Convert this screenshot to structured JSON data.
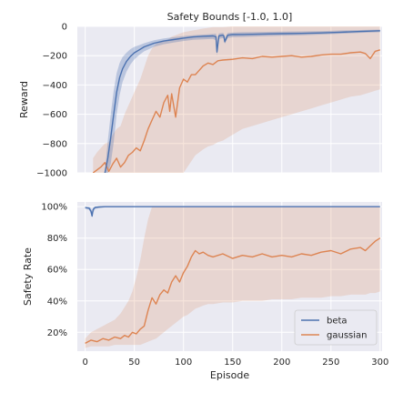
{
  "colors": {
    "panel_bg": "#eaeaf2",
    "grid": "#ffffff",
    "beta": "#4c72b0",
    "gaussian": "#dd8452"
  },
  "chart_data": [
    {
      "type": "line",
      "title": "Safety Bounds [-1.0, 1.0]",
      "xlabel": "",
      "ylabel": "Reward",
      "xlim": [
        -8,
        302
      ],
      "ylim": [
        -1000,
        0
      ],
      "xticks": [
        0,
        50,
        100,
        150,
        200,
        250,
        300
      ],
      "yticks": [
        0,
        -200,
        -400,
        -600,
        -800,
        -1000
      ],
      "ytick_labels": [
        "0",
        "−200",
        "−400",
        "−600",
        "−800",
        "−1000"
      ],
      "grid": true,
      "series": [
        {
          "name": "beta",
          "color": "#4c72b0",
          "x": [
            20,
            23,
            26,
            29,
            32,
            35,
            38,
            42,
            46,
            50,
            55,
            60,
            70,
            80,
            90,
            100,
            110,
            120,
            130,
            133,
            134,
            136,
            140,
            141,
            142,
            145,
            150,
            160,
            180,
            200,
            220,
            240,
            260,
            280,
            300
          ],
          "y": [
            -1000,
            -900,
            -760,
            -600,
            -450,
            -350,
            -290,
            -240,
            -205,
            -180,
            -160,
            -140,
            -115,
            -100,
            -90,
            -80,
            -72,
            -68,
            -65,
            -70,
            -175,
            -65,
            -60,
            -65,
            -105,
            -60,
            -56,
            -55,
            -52,
            -50,
            -48,
            -45,
            -40,
            -35,
            -30
          ],
          "band_lower": [
            -1000,
            -1000,
            -940,
            -790,
            -600,
            -470,
            -380,
            -310,
            -260,
            -225,
            -195,
            -170,
            -140,
            -122,
            -110,
            -100,
            -92,
            -88,
            -85,
            -95,
            -200,
            -85,
            -80,
            -82,
            -120,
            -78,
            -74,
            -72,
            -68,
            -64,
            -60,
            -56,
            -50,
            -44,
            -40
          ],
          "band_upper": [
            -1000,
            -780,
            -600,
            -440,
            -320,
            -250,
            -210,
            -180,
            -155,
            -140,
            -128,
            -115,
            -95,
            -82,
            -74,
            -66,
            -60,
            -56,
            -52,
            -50,
            -110,
            -48,
            -44,
            -48,
            -80,
            -45,
            -42,
            -40,
            -38,
            -36,
            -34,
            -32,
            -28,
            -25,
            -22
          ]
        },
        {
          "name": "gaussian",
          "color": "#dd8452",
          "x": [
            8,
            12,
            16,
            20,
            24,
            28,
            32,
            36,
            40,
            44,
            48,
            52,
            56,
            60,
            64,
            68,
            72,
            76,
            80,
            84,
            86,
            88,
            92,
            96,
            100,
            104,
            108,
            112,
            116,
            120,
            125,
            130,
            135,
            140,
            150,
            160,
            170,
            180,
            190,
            200,
            210,
            220,
            230,
            240,
            250,
            260,
            270,
            280,
            285,
            290,
            295,
            300
          ],
          "y": [
            -1000,
            -980,
            -960,
            -930,
            -990,
            -940,
            -900,
            -960,
            -930,
            -880,
            -860,
            -830,
            -850,
            -780,
            -700,
            -640,
            -580,
            -620,
            -520,
            -470,
            -580,
            -460,
            -620,
            -420,
            -360,
            -380,
            -330,
            -330,
            -300,
            -270,
            -250,
            -260,
            -235,
            -230,
            -225,
            -215,
            -220,
            -205,
            -210,
            -205,
            -200,
            -210,
            -205,
            -195,
            -190,
            -190,
            -180,
            -175,
            -185,
            -220,
            -170,
            -160
          ],
          "band_lower": [
            -1000,
            -1000,
            -1000,
            -1000,
            -1000,
            -1000,
            -1000,
            -1000,
            -1000,
            -1000,
            -1000,
            -1000,
            -1000,
            -1000,
            -1000,
            -1000,
            -1000,
            -1000,
            -1000,
            -1000,
            -1000,
            -1000,
            -1000,
            -1000,
            -1000,
            -960,
            -920,
            -880,
            -860,
            -840,
            -820,
            -810,
            -790,
            -780,
            -740,
            -700,
            -680,
            -660,
            -640,
            -620,
            -600,
            -580,
            -560,
            -540,
            -520,
            -500,
            -480,
            -470,
            -460,
            -450,
            -440,
            -430
          ],
          "band_upper": [
            -900,
            -860,
            -830,
            -800,
            -790,
            -740,
            -700,
            -680,
            -600,
            -540,
            -480,
            -420,
            -360,
            -280,
            -200,
            -150,
            -120,
            -110,
            -100,
            -90,
            -80,
            -70,
            -60,
            -50,
            -40,
            -35,
            -30,
            -25,
            -20,
            -15,
            -10,
            -5,
            -5,
            -5,
            0,
            0,
            0,
            0,
            0,
            0,
            0,
            0,
            0,
            0,
            0,
            0,
            0,
            0,
            0,
            0,
            0,
            0
          ]
        }
      ]
    },
    {
      "type": "line",
      "title": "",
      "xlabel": "Episode",
      "ylabel": "Safety Rate",
      "xlim": [
        -8,
        302
      ],
      "ylim": [
        0.08,
        1.03
      ],
      "xticks": [
        0,
        50,
        100,
        150,
        200,
        250,
        300
      ],
      "xtick_labels": [
        "0",
        "50",
        "100",
        "150",
        "200",
        "250",
        "300"
      ],
      "yticks": [
        1.0,
        0.8,
        0.6,
        0.4,
        0.2
      ],
      "ytick_labels": [
        "100%",
        "80%",
        "60%",
        "40%",
        "20%"
      ],
      "grid": true,
      "legend": "lower-right",
      "series": [
        {
          "name": "beta",
          "color": "#4c72b0",
          "x": [
            0,
            4,
            6,
            7,
            8,
            10,
            14,
            20,
            50,
            100,
            150,
            200,
            250,
            300
          ],
          "y": [
            0.995,
            0.99,
            0.97,
            0.94,
            0.98,
            0.995,
            0.998,
            1.0,
            1.0,
            1.0,
            1.0,
            1.0,
            1.0,
            1.0
          ],
          "band_lower": [
            0.985,
            0.98,
            0.95,
            0.93,
            0.96,
            0.985,
            0.99,
            0.995,
            0.998,
            0.998,
            0.998,
            0.998,
            0.998,
            0.998
          ],
          "band_upper": [
            1.0,
            1.0,
            0.99,
            0.97,
            0.995,
            1.0,
            1.0,
            1.0,
            1.0,
            1.0,
            1.0,
            1.0,
            1.0,
            1.0
          ]
        },
        {
          "name": "gaussian",
          "color": "#dd8452",
          "x": [
            0,
            6,
            12,
            18,
            24,
            30,
            36,
            40,
            44,
            48,
            52,
            56,
            60,
            64,
            68,
            72,
            76,
            80,
            84,
            88,
            92,
            96,
            100,
            104,
            108,
            112,
            116,
            120,
            125,
            130,
            140,
            150,
            160,
            170,
            180,
            190,
            200,
            210,
            220,
            230,
            240,
            250,
            260,
            270,
            280,
            285,
            290,
            295,
            300
          ],
          "y": [
            0.13,
            0.15,
            0.14,
            0.16,
            0.15,
            0.17,
            0.16,
            0.18,
            0.17,
            0.2,
            0.19,
            0.22,
            0.24,
            0.34,
            0.42,
            0.38,
            0.44,
            0.47,
            0.45,
            0.52,
            0.56,
            0.52,
            0.58,
            0.62,
            0.68,
            0.72,
            0.7,
            0.71,
            0.69,
            0.68,
            0.7,
            0.67,
            0.69,
            0.68,
            0.7,
            0.68,
            0.69,
            0.68,
            0.7,
            0.69,
            0.71,
            0.72,
            0.7,
            0.73,
            0.74,
            0.72,
            0.75,
            0.78,
            0.8
          ],
          "band_lower": [
            0.1,
            0.11,
            0.11,
            0.11,
            0.11,
            0.12,
            0.12,
            0.12,
            0.12,
            0.12,
            0.12,
            0.12,
            0.13,
            0.14,
            0.15,
            0.16,
            0.18,
            0.2,
            0.22,
            0.24,
            0.26,
            0.28,
            0.3,
            0.31,
            0.33,
            0.35,
            0.36,
            0.37,
            0.38,
            0.38,
            0.39,
            0.39,
            0.4,
            0.4,
            0.4,
            0.41,
            0.41,
            0.41,
            0.42,
            0.42,
            0.42,
            0.43,
            0.43,
            0.44,
            0.44,
            0.44,
            0.45,
            0.45,
            0.46
          ],
          "band_upper": [
            0.16,
            0.2,
            0.22,
            0.24,
            0.26,
            0.28,
            0.32,
            0.36,
            0.4,
            0.46,
            0.55,
            0.66,
            0.8,
            0.92,
            1.0,
            1.0,
            1.0,
            1.0,
            1.0,
            1.0,
            1.0,
            1.0,
            1.0,
            1.0,
            1.0,
            1.0,
            1.0,
            1.0,
            1.0,
            1.0,
            1.0,
            1.0,
            1.0,
            1.0,
            1.0,
            1.0,
            1.0,
            1.0,
            1.0,
            1.0,
            1.0,
            1.0,
            1.0,
            1.0,
            1.0,
            1.0,
            1.0,
            1.0,
            1.0
          ]
        }
      ]
    }
  ]
}
